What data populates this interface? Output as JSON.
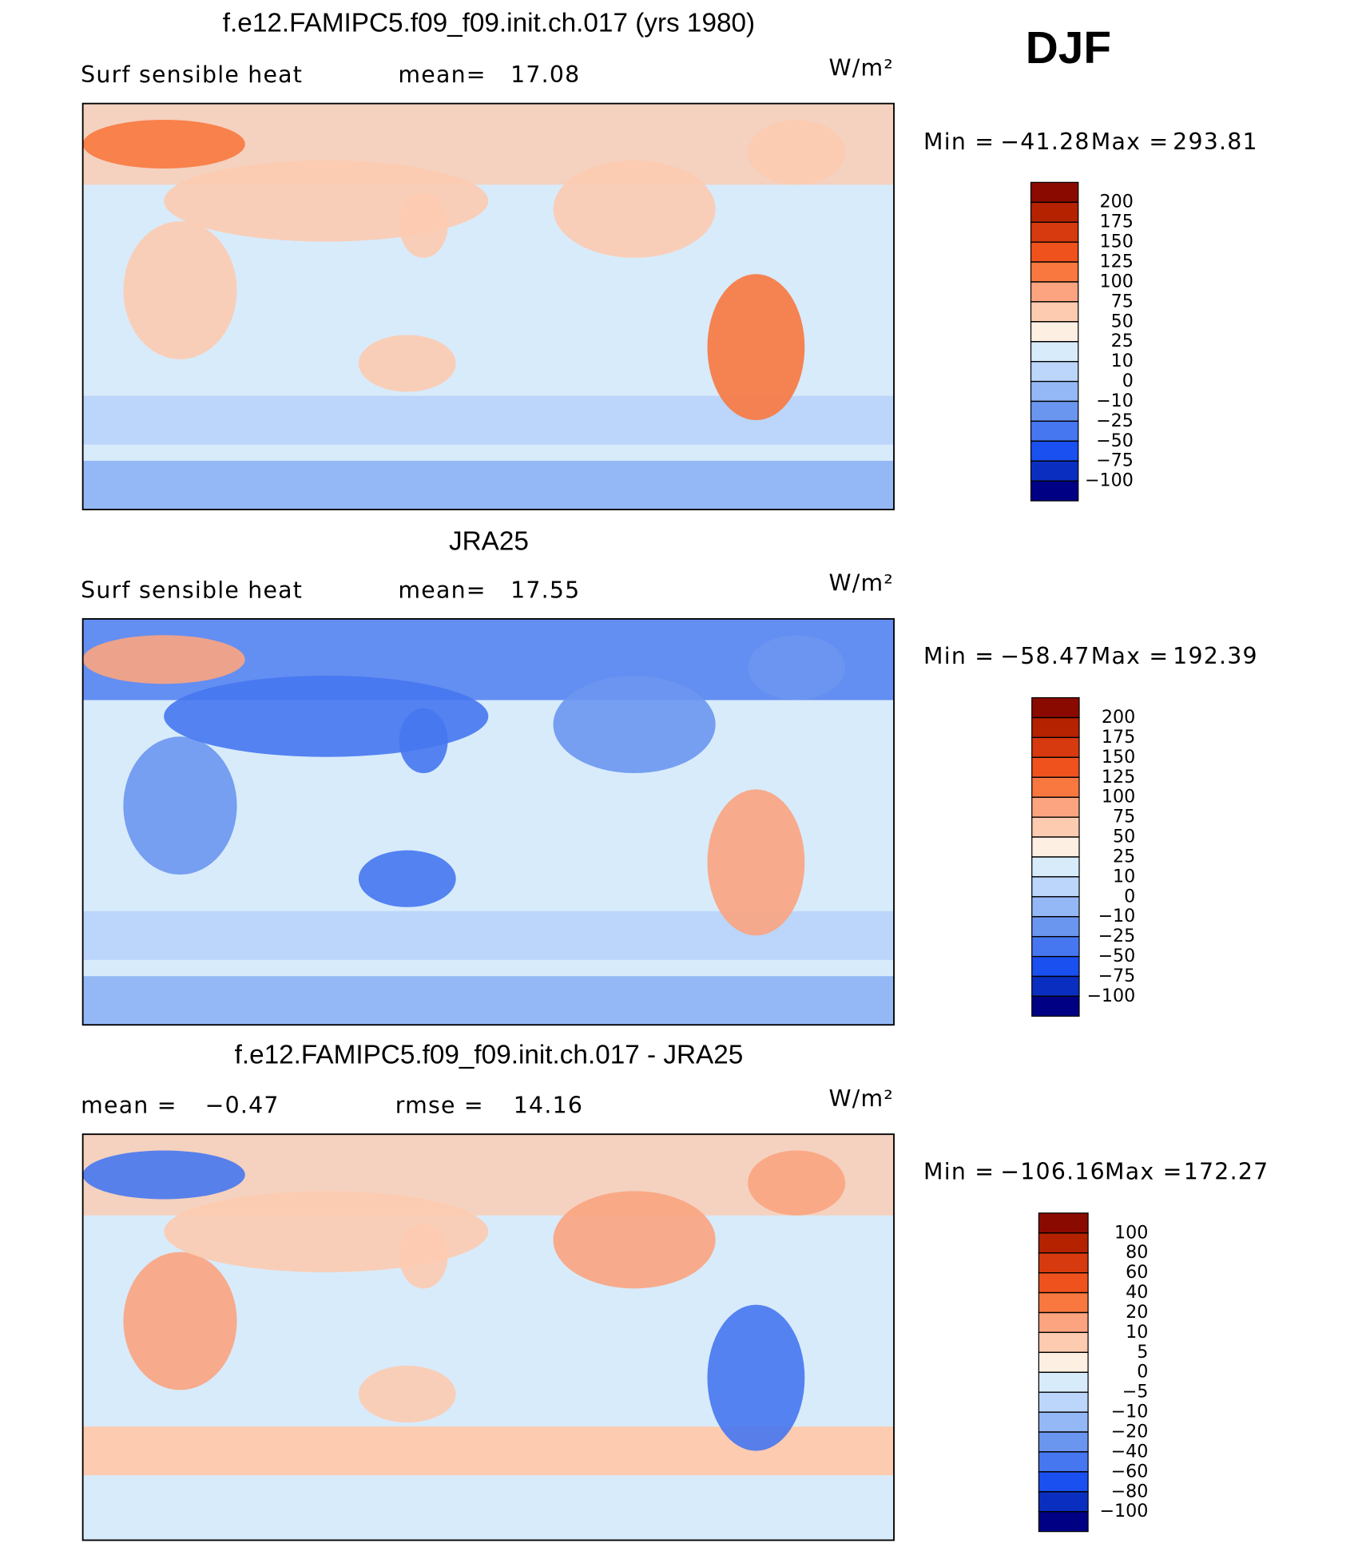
{
  "figure_title": "DJF",
  "panels": [
    {
      "title": "f.e12.FAMIPC5.f09_f09.init.ch.017 (yrs 1980)",
      "label": "Surf sensible heat",
      "mean_label": "mean=",
      "mean": 17.08,
      "units": "W/m²",
      "min_label": "Min =",
      "min": {
        "value": -41.28,
        "label": "−41.28"
      },
      "max_label": "Max =",
      "max": 293.81,
      "levels": [
        200,
        175,
        150,
        125,
        100,
        75,
        50,
        25,
        10,
        0,
        {
          "value": -10,
          "label": "−10"
        },
        {
          "value": -25,
          "label": "−25"
        },
        {
          "value": -50,
          "label": "−50"
        },
        {
          "value": -75,
          "label": "−75"
        },
        {
          "value": -100,
          "label": "−100"
        }
      ],
      "colors": [
        "#8b0a00",
        "#b42200",
        "#d63a0e",
        "#f0521e",
        "#f8783f",
        "#fba47f",
        "#fdcbb0",
        "#fdefe2",
        "#d8ebfb",
        "#bcd5fa",
        "#94b8f5",
        "#6b96f0",
        "#4677f0",
        "#1a4ff0",
        "#0a2fc0",
        "#000085"
      ]
    },
    {
      "title": "JRA25",
      "label": "Surf sensible heat",
      "mean_label": "mean=",
      "mean": 17.55,
      "units": "W/m²",
      "min_label": "Min =",
      "min": {
        "value": -58.47,
        "label": "−58.47"
      },
      "max_label": "Max =",
      "max": 192.39,
      "levels": [
        200,
        175,
        150,
        125,
        100,
        75,
        50,
        25,
        10,
        0,
        {
          "value": -10,
          "label": "−10"
        },
        {
          "value": -25,
          "label": "−25"
        },
        {
          "value": -50,
          "label": "−50"
        },
        {
          "value": -75,
          "label": "−75"
        },
        {
          "value": -100,
          "label": "−100"
        }
      ],
      "colors": [
        "#8b0a00",
        "#b42200",
        "#d63a0e",
        "#f0521e",
        "#f8783f",
        "#fba47f",
        "#fdcbb0",
        "#fdefe2",
        "#d8ebfb",
        "#bcd5fa",
        "#94b8f5",
        "#6b96f0",
        "#4677f0",
        "#1a4ff0",
        "#0a2fc0",
        "#000085"
      ]
    },
    {
      "title": "f.e12.FAMIPC5.f09_f09.init.ch.017 - JRA25",
      "mean_label": "mean =",
      "mean": {
        "value": -0.47,
        "label": "−0.47"
      },
      "rmse_label": "rmse =",
      "rmse": 14.16,
      "units": "W/m²",
      "min_label": "Min =",
      "min": {
        "value": -106.16,
        "label": "−106.16"
      },
      "max_label": "Max =",
      "max": 172.27,
      "levels": [
        100,
        80,
        60,
        40,
        20,
        10,
        5,
        0,
        {
          "value": -5,
          "label": "−5"
        },
        {
          "value": -10,
          "label": "−10"
        },
        {
          "value": -20,
          "label": "−20"
        },
        {
          "value": -40,
          "label": "−40"
        },
        {
          "value": -60,
          "label": "−60"
        },
        {
          "value": -80,
          "label": "−80"
        },
        {
          "value": -100,
          "label": "−100"
        }
      ],
      "colors": [
        "#8b0a00",
        "#b42200",
        "#d63a0e",
        "#f0521e",
        "#f8783f",
        "#fba47f",
        "#fdcbb0",
        "#fdefe2",
        "#d8ebfb",
        "#bcd5fa",
        "#94b8f5",
        "#6b96f0",
        "#4677f0",
        "#1a4ff0",
        "#0a2fc0",
        "#000085"
      ]
    }
  ]
}
